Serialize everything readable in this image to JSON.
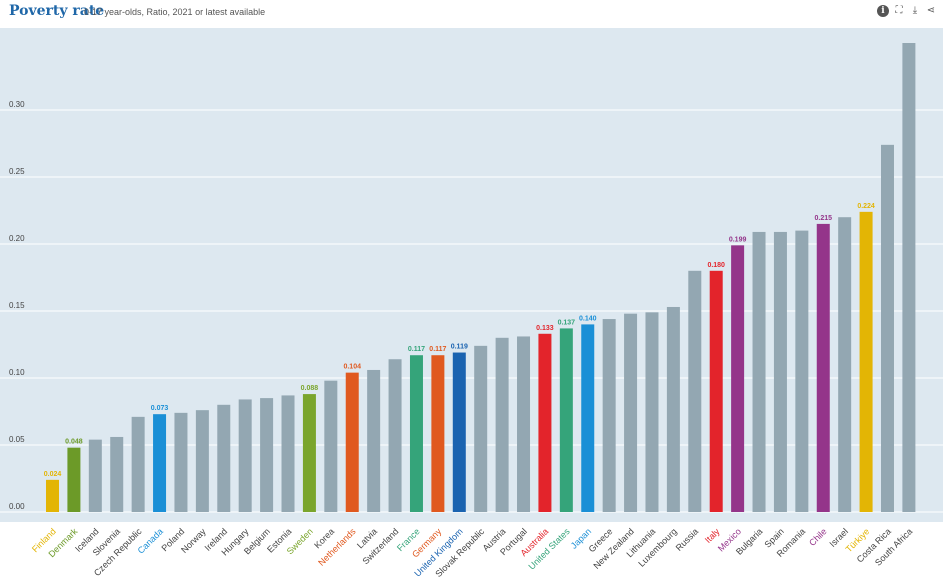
{
  "header": {
    "title": "Poverty rate",
    "subtitle": "0-17 year-olds, Ratio, 2021 or latest available",
    "tools": [
      {
        "icon": "info-icon",
        "glyph": "i"
      },
      {
        "icon": "fullscreen-icon",
        "glyph": "⛶"
      },
      {
        "icon": "download-icon",
        "glyph": "⤓"
      },
      {
        "icon": "share-icon",
        "glyph": "⋖"
      }
    ]
  },
  "colors": {
    "plot_bg": "#dde8f0",
    "grid": "#ffffff",
    "default_bar": "#93a7b2",
    "tick_text": "#444444"
  },
  "chart_data": {
    "type": "bar",
    "ylim": [
      0,
      0.35
    ],
    "yticks": [
      "0.00",
      "0.05",
      "0.10",
      "0.15",
      "0.20",
      "0.25",
      "0.30"
    ],
    "grid": true,
    "categories": [
      "Finland",
      "Denmark",
      "Iceland",
      "Slovenia",
      "Czech Republic",
      "Canada",
      "Poland",
      "Norway",
      "Ireland",
      "Hungary",
      "Belgium",
      "Estonia",
      "Sweden",
      "Korea",
      "Netherlands",
      "Latvia",
      "Switzerland",
      "France",
      "Germany",
      "United Kingdom",
      "Slovak Republic",
      "Austria",
      "Portugal",
      "Australia",
      "United States",
      "Japan",
      "Greece",
      "New Zealand",
      "Lithuania",
      "Luxembourg",
      "Russia",
      "Italy",
      "Mexico",
      "Bulgaria",
      "Spain",
      "Romania",
      "Chile",
      "Israel",
      "Türkiye",
      "Costa Rica",
      "South Africa"
    ],
    "values": [
      0.024,
      0.048,
      0.054,
      0.056,
      0.071,
      0.073,
      0.074,
      0.076,
      0.08,
      0.084,
      0.085,
      0.087,
      0.088,
      0.098,
      0.104,
      0.106,
      0.114,
      0.117,
      0.117,
      0.119,
      0.124,
      0.13,
      0.131,
      0.133,
      0.137,
      0.14,
      0.144,
      0.148,
      0.149,
      0.153,
      0.18,
      0.18,
      0.199,
      0.209,
      0.209,
      0.21,
      0.215,
      0.22,
      0.224,
      0.274,
      0.35
    ],
    "highlighted": {
      "Finland": {
        "color": "#e3b505",
        "label": "0.024"
      },
      "Denmark": {
        "color": "#6c9a28",
        "label": "0.048"
      },
      "Canada": {
        "color": "#1a8fd6",
        "label": "0.073"
      },
      "Sweden": {
        "color": "#7aa52c",
        "label": "0.088"
      },
      "Netherlands": {
        "color": "#e0591f",
        "label": "0.104"
      },
      "France": {
        "color": "#35a47a",
        "label": "0.117"
      },
      "Germany": {
        "color": "#e0591f",
        "label": "0.117"
      },
      "United Kingdom": {
        "color": "#1a63b0",
        "label": "0.119"
      },
      "Australia": {
        "color": "#e3242b",
        "label": "0.133"
      },
      "United States": {
        "color": "#35a47a",
        "label": "0.137"
      },
      "Japan": {
        "color": "#1a8fd6",
        "label": "0.140"
      },
      "Italy": {
        "color": "#e3242b",
        "label": "0.180"
      },
      "Mexico": {
        "color": "#94358a",
        "label": "0.199"
      },
      "Chile": {
        "color": "#94358a",
        "label": "0.215"
      },
      "Türkiye": {
        "color": "#e3b505",
        "label": "0.224"
      }
    }
  }
}
